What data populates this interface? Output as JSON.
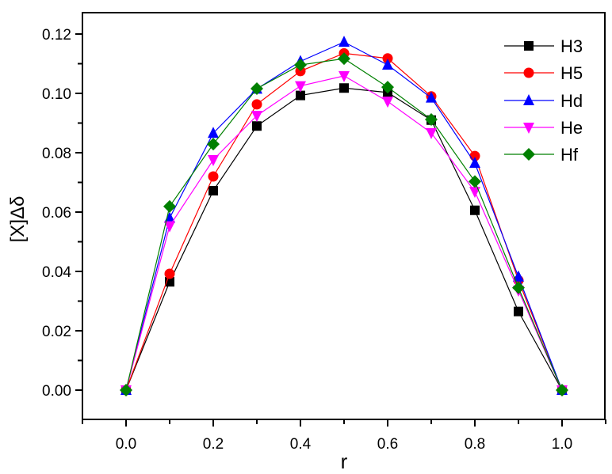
{
  "chart_data": {
    "type": "line",
    "title": "",
    "xlabel": "r",
    "ylabel": "[X]Δδ",
    "xlim": [
      -0.1,
      1.1
    ],
    "ylim": [
      -0.01,
      0.13
    ],
    "xticks": [
      0.0,
      0.2,
      0.4,
      0.6,
      0.8,
      1.0
    ],
    "xtick_labels": [
      "0.0",
      "0.2",
      "0.4",
      "0.6",
      "0.8",
      "1.0"
    ],
    "yticks": [
      0.0,
      0.02,
      0.04,
      0.06,
      0.08,
      0.1,
      0.12
    ],
    "ytick_labels": [
      "0.00",
      "0.02",
      "0.04",
      "0.06",
      "0.08",
      "0.10",
      "0.12"
    ],
    "grid": false,
    "legend_position": "upper right",
    "x": [
      0.0,
      0.1,
      0.2,
      0.3,
      0.4,
      0.5,
      0.6,
      0.7,
      0.8,
      0.9,
      1.0
    ],
    "series": [
      {
        "name": "H3",
        "color": "#000000",
        "marker": "square",
        "values": [
          0.0,
          0.0365,
          0.0672,
          0.089,
          0.0993,
          0.1018,
          0.1003,
          0.091,
          0.0606,
          0.0265,
          0.0
        ]
      },
      {
        "name": "H5",
        "color": "#ff0000",
        "marker": "circle",
        "values": [
          0.0,
          0.0392,
          0.072,
          0.0963,
          0.1075,
          0.1135,
          0.1118,
          0.099,
          0.0789,
          0.037,
          0.0
        ]
      },
      {
        "name": "Hd",
        "color": "#0000ff",
        "marker": "triangle-up",
        "values": [
          0.0,
          0.058,
          0.0866,
          0.1015,
          0.1108,
          0.1173,
          0.1096,
          0.0985,
          0.0765,
          0.0382,
          0.0
        ]
      },
      {
        "name": "He",
        "color": "#ff00ff",
        "marker": "triangle-down",
        "values": [
          0.0,
          0.0553,
          0.0776,
          0.0925,
          0.1025,
          0.1059,
          0.0973,
          0.0867,
          0.0669,
          0.0336,
          0.0
        ]
      },
      {
        "name": "Hf",
        "color": "#008000",
        "marker": "diamond",
        "values": [
          0.0,
          0.0619,
          0.0829,
          0.1016,
          0.1096,
          0.1117,
          0.1021,
          0.0912,
          0.0703,
          0.0345,
          0.0
        ]
      }
    ]
  }
}
